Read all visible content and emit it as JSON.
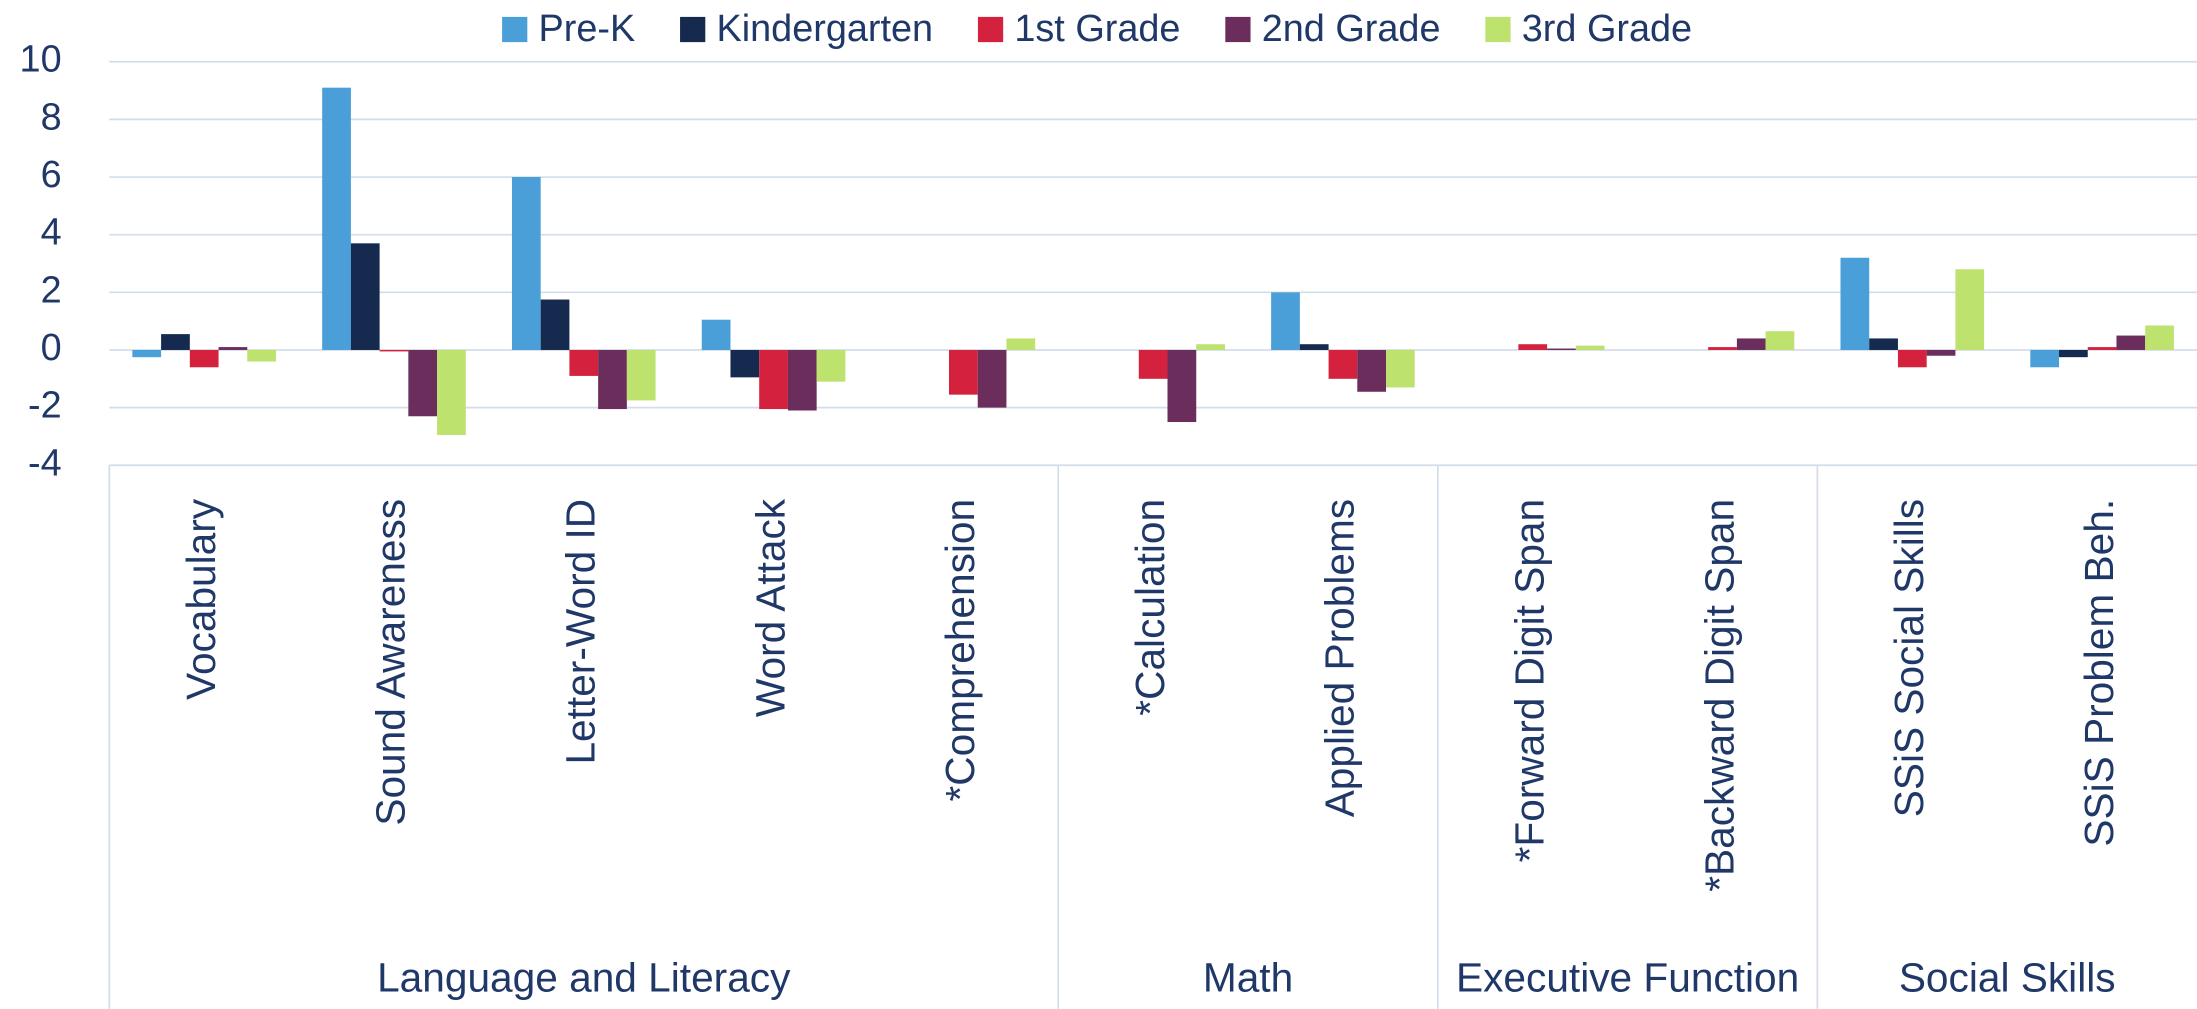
{
  "chart_data": {
    "type": "bar",
    "groups": [
      {
        "name": "Language and Literacy",
        "categories": [
          "Vocabulary",
          "Sound Awareness",
          "Letter-Word ID",
          "Word Attack",
          "*Comprehension"
        ]
      },
      {
        "name": "Math",
        "categories": [
          "*Calculation",
          "Applied Problems"
        ]
      },
      {
        "name": "Executive Function",
        "categories": [
          "*Forward Digit Span",
          "*Backward Digit Span"
        ]
      },
      {
        "name": "Social Skills",
        "categories": [
          "SSiS Social Skills",
          "SSiS Problem Beh."
        ]
      }
    ],
    "series": [
      {
        "name": "Pre-K",
        "color": "#4a9fd8",
        "values": [
          -0.25,
          9.1,
          6.0,
          1.05,
          null,
          null,
          2.0,
          null,
          null,
          3.2,
          -0.6
        ]
      },
      {
        "name": "Kindergarten",
        "color": "#152a4e",
        "values": [
          0.55,
          3.7,
          1.75,
          -0.95,
          null,
          null,
          0.2,
          null,
          null,
          0.4,
          -0.25
        ]
      },
      {
        "name": "1st Grade",
        "color": "#d4213d",
        "values": [
          -0.6,
          -0.05,
          -0.9,
          -2.05,
          -1.55,
          -1.0,
          -1.0,
          0.2,
          0.1,
          -0.6,
          0.1
        ]
      },
      {
        "name": "2nd Grade",
        "color": "#6b2d5c",
        "values": [
          0.1,
          -2.3,
          -2.05,
          -2.1,
          -2.0,
          -2.5,
          -1.45,
          0.05,
          0.4,
          -0.2,
          0.5
        ]
      },
      {
        "name": "3rd Grade",
        "color": "#bde26e",
        "values": [
          -0.4,
          -2.95,
          -1.75,
          -1.1,
          0.4,
          0.2,
          -1.3,
          0.15,
          0.65,
          2.8,
          0.85
        ]
      }
    ],
    "ylim": [
      -4,
      10
    ],
    "yticks": [
      -4,
      -2,
      0,
      2,
      4,
      6,
      8,
      10
    ],
    "grid": true,
    "legend": "top"
  }
}
